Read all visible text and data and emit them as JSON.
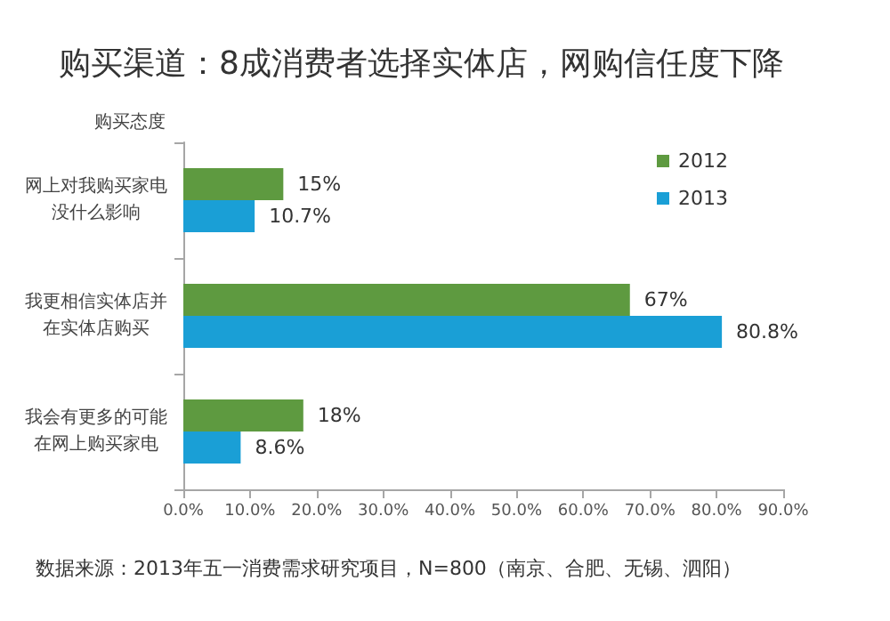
{
  "chart_data": {
    "type": "bar",
    "orientation": "horizontal",
    "title": "购买渠道：8成消费者选择实体店，网购信任度下降",
    "ylabel": "购买态度",
    "categories": [
      "网上对我购买家电没什么影响",
      "我更相信实体店并在实体店购买",
      "我会有更多的可能在网上购买家电"
    ],
    "series": [
      {
        "name": "2012",
        "color": "#5e9a40",
        "values": [
          15,
          67,
          18
        ],
        "value_labels": [
          "15%",
          "67%",
          "18%"
        ]
      },
      {
        "name": "2013",
        "color": "#1a9fd6",
        "values": [
          10.7,
          80.8,
          8.6
        ],
        "value_labels": [
          "10.7%",
          "80.8%",
          "8.6%"
        ]
      }
    ],
    "xlim": [
      0,
      90
    ],
    "xticks": [
      {
        "value": 0,
        "label": "0.0%"
      },
      {
        "value": 10,
        "label": "10.0%"
      },
      {
        "value": 20,
        "label": "20.0%"
      },
      {
        "value": 30,
        "label": "30.0%"
      },
      {
        "value": 40,
        "label": "40.0%"
      },
      {
        "value": 50,
        "label": "50.0%"
      },
      {
        "value": 60,
        "label": "60.0%"
      },
      {
        "value": 70,
        "label": "70.0%"
      },
      {
        "value": 80,
        "label": "80.0%"
      },
      {
        "value": 90,
        "label": "90.0%"
      }
    ],
    "legend": "top right",
    "annotations": [
      "数据来源：2013年五一消费需求研究项目，N=800（南京、合肥、无锡、泗阳）"
    ]
  }
}
